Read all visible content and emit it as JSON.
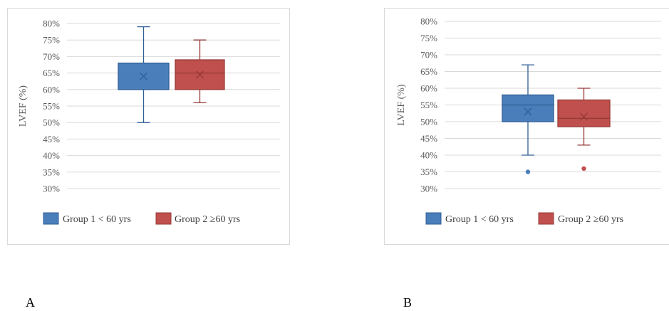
{
  "colors": {
    "group1_fill": "#4a7ebb",
    "group1_stroke": "#2f5f95",
    "group2_fill": "#c0504d",
    "group2_stroke": "#963a37",
    "grid": "#d9d9d9",
    "text": "#595959"
  },
  "panel_labels": [
    "A",
    "B"
  ],
  "chart_data": [
    {
      "type": "box",
      "panel": "A",
      "ylabel": "LVEF (%)",
      "ylim": [
        30,
        80
      ],
      "yticks": [
        "30%",
        "35%",
        "40%",
        "45%",
        "50%",
        "55%",
        "60%",
        "65%",
        "70%",
        "75%",
        "80%"
      ],
      "grid": true,
      "legend_position": "bottom",
      "series": [
        {
          "name": "Group 1 < 60 yrs",
          "whisker_min": 50,
          "q1": 60,
          "median": 60,
          "q3": 68,
          "whisker_max": 79,
          "mean": 64,
          "outliers": []
        },
        {
          "name": "Group 2 ≥60 yrs",
          "whisker_min": 56,
          "q1": 60,
          "median": 65,
          "q3": 69,
          "whisker_max": 75,
          "mean": 64.5,
          "outliers": []
        }
      ]
    },
    {
      "type": "box",
      "panel": "B",
      "ylabel": "LVEF (%)",
      "ylim": [
        30,
        80
      ],
      "yticks": [
        "30%",
        "35%",
        "40%",
        "45%",
        "50%",
        "55%",
        "60%",
        "65%",
        "70%",
        "75%",
        "80%"
      ],
      "grid": true,
      "legend_position": "bottom",
      "series": [
        {
          "name": "Group 1 < 60 yrs",
          "whisker_min": 40,
          "q1": 50,
          "median": 55,
          "q3": 58,
          "whisker_max": 67,
          "mean": 53,
          "outliers": [
            35
          ]
        },
        {
          "name": "Group 2 ≥60 yrs",
          "whisker_min": 43,
          "q1": 48.5,
          "median": 51,
          "q3": 56.5,
          "whisker_max": 60,
          "mean": 51.5,
          "outliers": [
            36
          ]
        }
      ]
    }
  ]
}
